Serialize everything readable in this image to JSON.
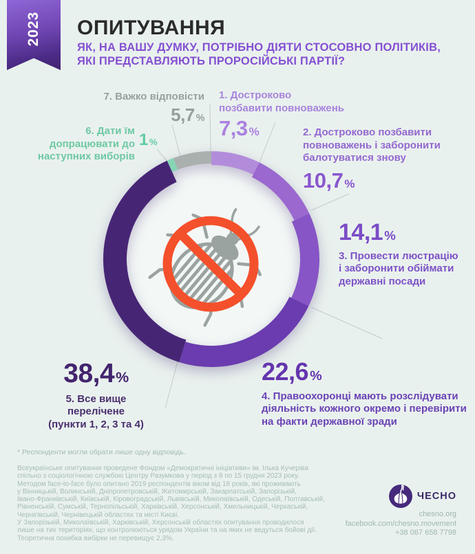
{
  "badge": {
    "year": "2023"
  },
  "header": {
    "title": "ОПИТУВАННЯ",
    "subtitle": "ЯК, НА ВАШУ ДУМКУ, ПОТРІБНО ДІЯТИ СТОСОВНО ПОЛІТИКІВ,\nЯКІ ПРЕДСТАВЛЯЮТЬ ПРОРОСІЙСЬКІ ПАРТІЇ?"
  },
  "chart_data": {
    "type": "donut",
    "unit": "%",
    "center_icon": "prohibited-colorado-beetle-icon",
    "colors": {
      "background": "#e9f1ee",
      "inner_disc": "#f3f8f6",
      "prohibition_red": "#f4502c",
      "beetle_gray": "#9aa3a0"
    },
    "segments": [
      {
        "order": 1,
        "label": "1. Достроково\nпозбавити повноважень",
        "value": 7.3,
        "display": "7,3",
        "color": "#b28cdb",
        "thickness": 20
      },
      {
        "order": 2,
        "label": "2. Достроково позбавити\nповноважень і заборонити\nбалотуватися знову",
        "value": 10.7,
        "display": "10,7",
        "color": "#9a68cf",
        "thickness": 24
      },
      {
        "order": 3,
        "label": "3. Провести люстрацію\nі заборонити обіймати\nдержавні посади",
        "value": 14.1,
        "display": "14,1",
        "color": "#8755c6",
        "thickness": 28
      },
      {
        "order": 4,
        "label": "4. Правоохоронці мають розслідувати\nдіяльність кожного окремо і перевірити\nна факти державної зради",
        "value": 22.6,
        "display": "22,6",
        "color": "#6a3caf",
        "thickness": 31
      },
      {
        "order": 5,
        "label": "5. Все вище перелічене\n(пункти 1, 2, 3 та 4)",
        "value": 38.4,
        "display": "38,4",
        "color": "#472575",
        "thickness": 34
      },
      {
        "order": 6,
        "label": "6. Дати їм\nдопрацювати до\nнаступних виборів",
        "value": 1,
        "display": "1",
        "color": "#86d5b5",
        "thickness": 18
      },
      {
        "order": 7,
        "label": "7. Важко відповісти",
        "value": 5.7,
        "display": "5,7",
        "color": "#a9b0ad",
        "thickness": 18
      }
    ]
  },
  "footnote": "* Респонденти могли обрати лише одну відповідь.",
  "methodology": "Всеукраїнське опитування проведене Фондом «Демократичні ініціативи» ім. Ілька Кучеріва\nспільно з соціологічною службою Центру Разумкова у період з 8 по 15 грудня 2023 року.\nМетодом face-to-face було опитано 2019 респондентів віком від 18 років, які проживають\nу Вінницькій, Волинській, Дніпропетровській, Житомирській, Закарпатській, Запорізькій,\nІвано-Франківській, Київській, Кіровоградській, Львівській, Миколаївській, Одеській, Полтавській,\nРівненській, Сумській, Тернопільській, Харківській, Херсонській, Хмельницькій, Черкаській,\nЧернігівській, Чернівецькій областях та місті Києві.\nУ Запорізькій, Миколаївській, Харківській, Херсонській областях опитування проводилося\nлише на тих територіях, що контролюються урядом України та на яких не ведуться бойові дії.\nТеоретична похибка вибірки не перевищує 2,3%.",
  "footer": {
    "logo_text": "ЧЕСНО",
    "logo_icon": "garlic-icon",
    "website": "chesno.org",
    "facebook": "facebook.com/chesno.movement",
    "phone": "+38 067 658 7798"
  }
}
